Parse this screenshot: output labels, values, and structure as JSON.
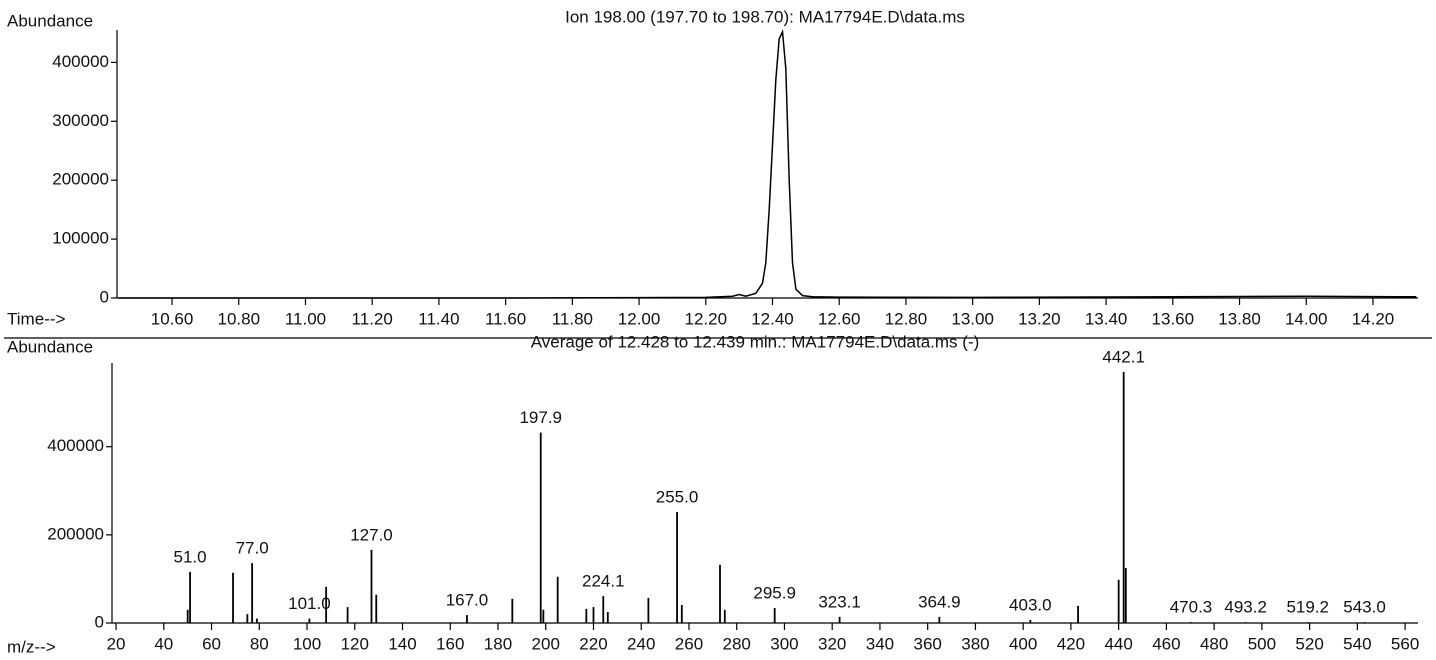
{
  "chart_data": [
    {
      "type": "line",
      "title": "Ion 198.00 (197.70 to 198.70): MA17794E.D\\data.ms",
      "ylabel": "Abundance",
      "xlabel": "Time-->",
      "xlim": [
        10.435,
        14.335
      ],
      "ylim": [
        0,
        455000
      ],
      "xticks": [
        {
          "value": 10.6,
          "label": "10.60"
        },
        {
          "value": 10.8,
          "label": "10.80"
        },
        {
          "value": 11.0,
          "label": "11.00"
        },
        {
          "value": 11.2,
          "label": "11.20"
        },
        {
          "value": 11.4,
          "label": "11.40"
        },
        {
          "value": 11.6,
          "label": "11.60"
        },
        {
          "value": 11.8,
          "label": "11.80"
        },
        {
          "value": 12.0,
          "label": "12.00"
        },
        {
          "value": 12.2,
          "label": "12.20"
        },
        {
          "value": 12.4,
          "label": "12.40"
        },
        {
          "value": 12.6,
          "label": "12.60"
        },
        {
          "value": 12.8,
          "label": "12.80"
        },
        {
          "value": 13.0,
          "label": "13.00"
        },
        {
          "value": 13.2,
          "label": "13.20"
        },
        {
          "value": 13.4,
          "label": "13.40"
        },
        {
          "value": 13.6,
          "label": "13.60"
        },
        {
          "value": 13.8,
          "label": "13.80"
        },
        {
          "value": 14.0,
          "label": "14.00"
        },
        {
          "value": 14.2,
          "label": "14.20"
        }
      ],
      "yticks": [
        0,
        100000,
        200000,
        300000,
        400000
      ],
      "series": [
        {
          "color": "#000000",
          "x": [
            10.44,
            11.0,
            11.6,
            12.2,
            12.28,
            12.3,
            12.32,
            12.35,
            12.37,
            12.38,
            12.39,
            12.4,
            12.41,
            12.42,
            12.43,
            12.44,
            12.45,
            12.46,
            12.47,
            12.49,
            12.52,
            12.6,
            13.0,
            13.6,
            14.0,
            14.33
          ],
          "values": [
            0,
            0,
            0,
            1000,
            3000,
            6000,
            3000,
            8000,
            25000,
            60000,
            150000,
            260000,
            370000,
            440000,
            452000,
            390000,
            200000,
            60000,
            15000,
            4000,
            2000,
            1500,
            1000,
            2000,
            3000,
            2000
          ]
        }
      ]
    },
    {
      "type": "spectrum",
      "title": "Average of 12.428 to 12.439 min.: MA17794E.D\\data.ms (-)",
      "ylabel": "Abundance",
      "xlabel": "m/z-->",
      "xlim": [
        18.3,
        565.4
      ],
      "ylim": [
        0,
        590000
      ],
      "xticks": [
        20,
        40,
        60,
        80,
        100,
        120,
        140,
        160,
        180,
        200,
        220,
        240,
        260,
        280,
        300,
        320,
        340,
        360,
        380,
        400,
        420,
        440,
        460,
        480,
        500,
        520,
        540,
        560
      ],
      "yticks": [
        0,
        200000,
        400000
      ],
      "color": "#000000",
      "x": [
        50,
        51.0,
        69,
        75,
        77.0,
        79,
        101.0,
        108,
        117,
        127.0,
        129,
        167.0,
        186,
        197.9,
        199,
        205,
        217,
        220,
        224.1,
        226,
        243,
        255.0,
        257,
        273,
        275,
        295.9,
        323.1,
        364.9,
        403.0,
        423,
        440,
        442.1,
        443,
        470.3,
        493.2,
        519.2,
        543.0
      ],
      "x_labels": [
        null,
        "51.0",
        null,
        null,
        "77.0",
        null,
        "101.0",
        null,
        null,
        "127.0",
        null,
        "167.0",
        null,
        "197.9",
        null,
        null,
        null,
        null,
        "224.1",
        null,
        null,
        "255.0",
        null,
        null,
        null,
        "295.9",
        "323.1",
        "364.9",
        "403.0",
        null,
        null,
        "442.1",
        null,
        "470.3",
        "493.2",
        "519.2",
        "543.0"
      ],
      "values": [
        30000,
        116000,
        114000,
        20000,
        136000,
        10000,
        10000,
        82000,
        36000,
        166000,
        64000,
        18000,
        55000,
        432000,
        30000,
        105000,
        32000,
        36000,
        61000,
        25000,
        57000,
        252000,
        41000,
        132000,
        30000,
        34000,
        14000,
        14000,
        7000,
        39000,
        98000,
        570000,
        125000,
        2000,
        2000,
        2000,
        2000
      ]
    }
  ]
}
